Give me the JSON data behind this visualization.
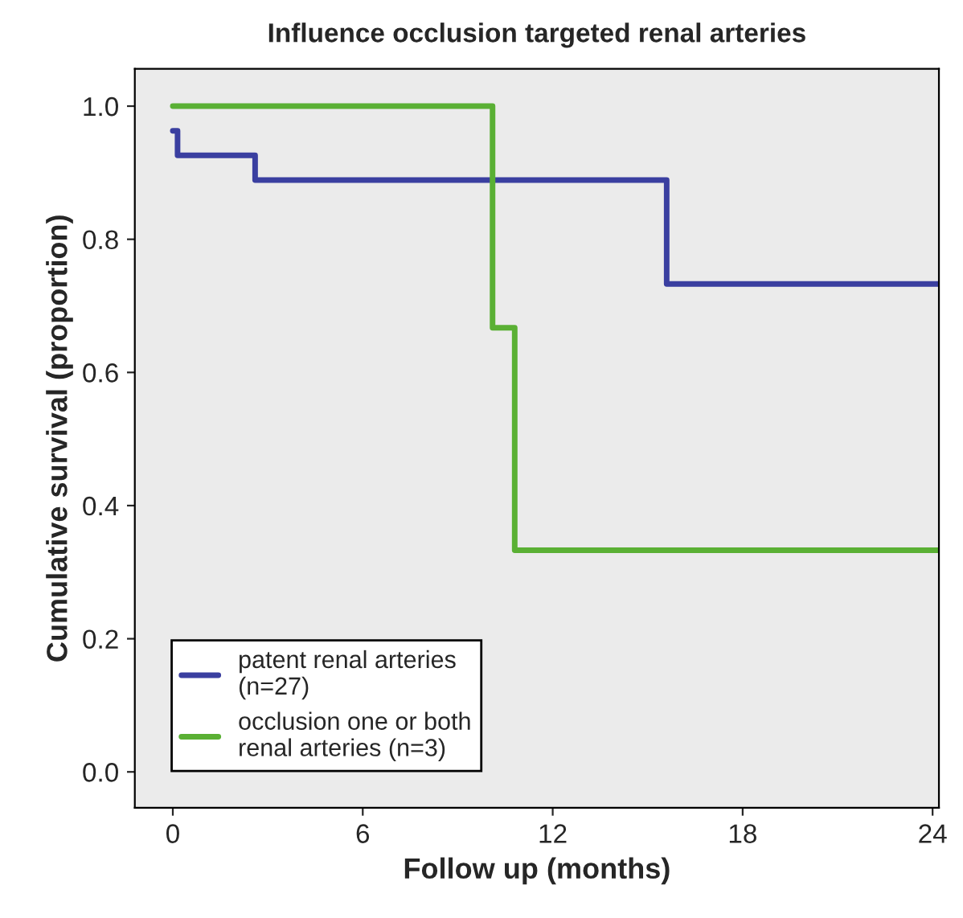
{
  "chart_data": {
    "type": "step",
    "title": "Influence occlusion targeted renal arteries",
    "xlabel": "Follow up (months)",
    "ylabel": "Cumulative survival (proportion)",
    "series": [
      {
        "name": "patent renal arteries\n(n=27)",
        "color": "#3a3fa0",
        "x": [
          0,
          0.15,
          2.6,
          15.6,
          24.2
        ],
        "values": [
          0.963,
          0.926,
          0.889,
          0.733,
          0.733
        ]
      },
      {
        "name": "occlusion one or both\nrenal arteries (n=3)",
        "color": "#5ab034",
        "x": [
          0,
          10.1,
          10.8,
          24.2
        ],
        "values": [
          1.0,
          0.667,
          0.333,
          0.333
        ]
      }
    ],
    "xlim": [
      -1.2,
      24.2
    ],
    "ylim": [
      -0.054,
      1.056
    ],
    "xticks": [
      0,
      6,
      12,
      18,
      24
    ],
    "yticks": [
      {
        "value": 0,
        "label": "0.0"
      },
      {
        "value": 0.2,
        "label": "0.2"
      },
      {
        "value": 0.4,
        "label": "0.4"
      },
      {
        "value": 0.6,
        "label": "0.6"
      },
      {
        "value": 0.8,
        "label": "0.8"
      },
      {
        "value": 1,
        "label": "1.0"
      }
    ],
    "grid": false,
    "legend": "bottom left"
  }
}
